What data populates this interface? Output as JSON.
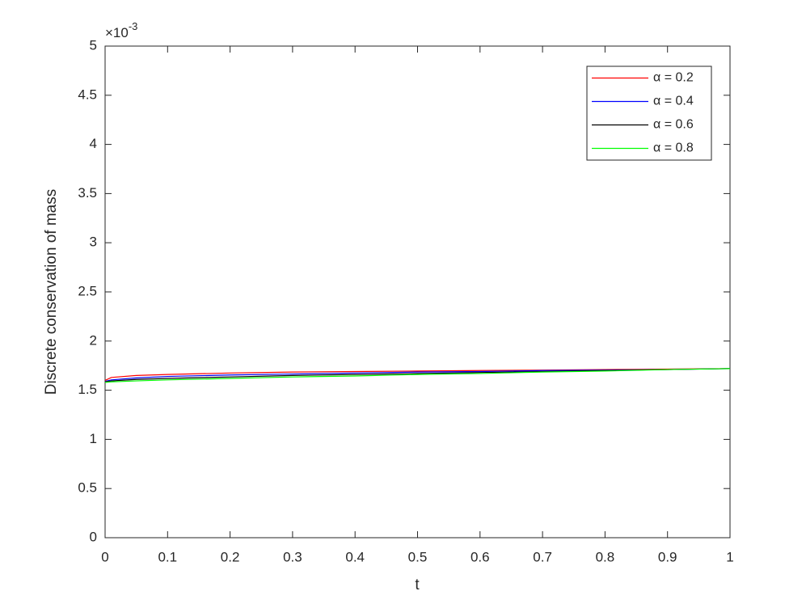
{
  "chart_data": {
    "type": "line",
    "x_label": "t",
    "y_label": "Discrete conservation of mass",
    "y_multiplier": {
      "base": "×10",
      "exponent": "-3"
    },
    "x": [
      0,
      0.01,
      0.05,
      0.1,
      0.2,
      0.3,
      0.4,
      0.5,
      0.6,
      0.7,
      0.8,
      0.9,
      1
    ],
    "series": [
      {
        "name": "α = 0.2",
        "color": "#ff0000",
        "values": [
          1.6,
          1.63,
          1.65,
          1.66,
          1.675,
          1.685,
          1.69,
          1.695,
          1.7,
          1.705,
          1.71,
          1.715,
          1.72
        ]
      },
      {
        "name": "α = 0.4",
        "color": "#0000ff",
        "values": [
          1.59,
          1.605,
          1.625,
          1.64,
          1.655,
          1.665,
          1.675,
          1.685,
          1.69,
          1.7,
          1.705,
          1.71,
          1.72
        ]
      },
      {
        "name": "α = 0.6",
        "color": "#000000",
        "values": [
          1.585,
          1.595,
          1.61,
          1.62,
          1.635,
          1.65,
          1.66,
          1.67,
          1.68,
          1.69,
          1.7,
          1.71,
          1.72
        ]
      },
      {
        "name": "α = 0.8",
        "color": "#00ff00",
        "values": [
          1.58,
          1.585,
          1.595,
          1.605,
          1.62,
          1.635,
          1.645,
          1.66,
          1.67,
          1.685,
          1.695,
          1.71,
          1.72
        ]
      }
    ],
    "xlim": [
      0,
      1
    ],
    "xticks": [
      0,
      0.1,
      0.2,
      0.3,
      0.4,
      0.5,
      0.6,
      0.7,
      0.8,
      0.9,
      1
    ],
    "ylim": [
      0,
      5
    ],
    "yticks": [
      0,
      0.5,
      1,
      1.5,
      2,
      2.5,
      3,
      3.5,
      4,
      4.5,
      5
    ],
    "grid": false,
    "legend": "northeast"
  }
}
